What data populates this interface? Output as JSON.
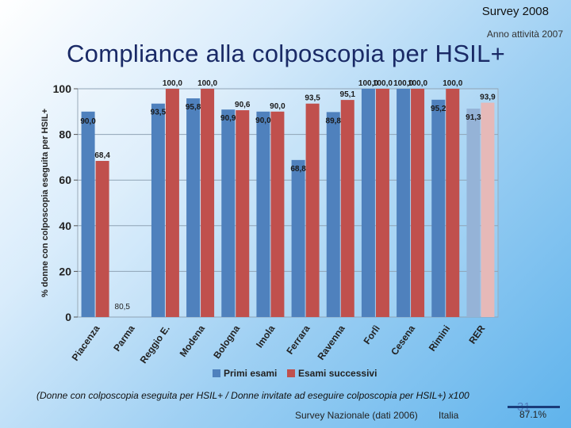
{
  "header": {
    "survey_label": "Survey 2008",
    "activity_label": "Anno attività 2007",
    "title": "Compliance alla colposcopia per HSIL+"
  },
  "chart_data": {
    "type": "bar",
    "title": "Compliance alla colposcopia per HSIL+",
    "ylabel": "% donne con colposcopia eseguita per HSIL+",
    "xlabel": "",
    "ylim": [
      0,
      100
    ],
    "yticks": [
      0,
      20,
      40,
      60,
      80,
      100
    ],
    "grid": true,
    "legend_position": "bottom",
    "categories": [
      "Piacenza",
      "Parma",
      "Reggio E.",
      "Modena",
      "Bologna",
      "Imola",
      "Ferrara",
      "Ravenna",
      "Forlì",
      "Cesena",
      "Rimini",
      "RER"
    ],
    "series": [
      {
        "name": "Primi esami",
        "color": "#4f81bd",
        "highlight_color": "#95b3d7",
        "values": [
          90.0,
          null,
          93.5,
          95.8,
          90.9,
          90.0,
          68.8,
          89.8,
          100.0,
          100.0,
          95.2,
          91.3
        ],
        "labels": [
          "90,0",
          "",
          "93,5",
          "95,8",
          "90,9",
          "90,0",
          "68,8",
          "89,8",
          "100,0",
          "100,0",
          "95,2",
          "91,3"
        ]
      },
      {
        "name": "Esami successivi",
        "color": "#c0504d",
        "highlight_color": "#e6b9b8",
        "values": [
          68.4,
          null,
          100.0,
          100.0,
          90.6,
          90.0,
          93.5,
          95.1,
          100.0,
          100.0,
          100.0,
          93.9
        ],
        "labels": [
          "68,4",
          "",
          "100,0",
          "100,0",
          "90,6",
          "90,0",
          "93,5",
          "95,1",
          "100,0",
          "100,0",
          "100,0",
          "93,9"
        ]
      }
    ],
    "annotation": "80,5"
  },
  "footer": {
    "formula": "(Donne con  colposcopia eseguita per HSIL+ / Donne invitate ad eseguire colposcopia per HSIL+) x100",
    "survey_note": "Survey Nazionale (dati 2006)",
    "region": "Italia",
    "national_value": "87.1%",
    "page_number": "31"
  }
}
